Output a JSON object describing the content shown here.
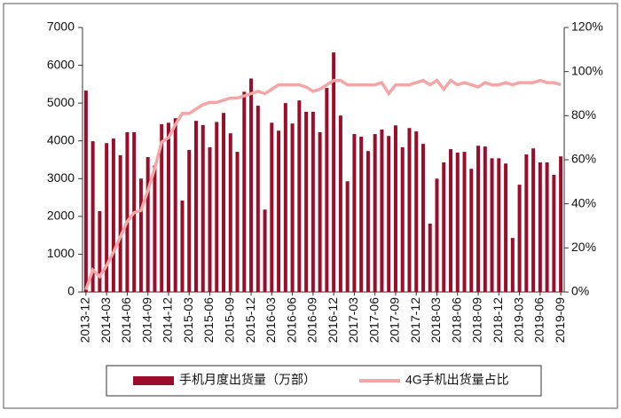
{
  "chart_data": {
    "type": "bar",
    "categories": [
      "2013-12",
      null,
      null,
      "2014-03",
      null,
      null,
      "2014-06",
      null,
      null,
      "2014-09",
      null,
      null,
      "2014-12",
      null,
      null,
      "2015-03",
      null,
      null,
      "2015-06",
      null,
      null,
      "2015-09",
      null,
      null,
      "2015-12",
      null,
      null,
      "2016-03",
      null,
      null,
      "2016-06",
      null,
      null,
      "2016-09",
      null,
      null,
      "2016-12",
      null,
      null,
      "2017-03",
      null,
      null,
      "2017-06",
      null,
      null,
      "2017-09",
      null,
      null,
      "2017-12",
      null,
      null,
      "2018-03",
      null,
      null,
      "2018-06",
      null,
      null,
      "2018-09",
      null,
      null,
      "2018-12",
      null,
      null,
      "2019-03",
      null,
      null,
      "2019-06",
      null,
      null,
      "2019-09"
    ],
    "series": [
      {
        "name": "手机月度出货量（万部）",
        "color": "#9b0e2b",
        "type": "bar",
        "values": [
          5330,
          3990,
          2140,
          3940,
          4060,
          3620,
          4230,
          4230,
          3000,
          3570,
          3350,
          4440,
          4480,
          4600,
          2420,
          3760,
          4530,
          4420,
          3830,
          4500,
          4740,
          4200,
          3710,
          5300,
          5650,
          4930,
          2180,
          4480,
          4270,
          5000,
          4460,
          5070,
          4770,
          4770,
          4230,
          5400,
          6340,
          4670,
          2930,
          4180,
          4110,
          3730,
          4180,
          4300,
          4130,
          4410,
          3830,
          4340,
          4250,
          3920,
          1810,
          3000,
          3430,
          3780,
          3690,
          3710,
          3260,
          3870,
          3850,
          3540,
          3540,
          3400,
          1430,
          2840,
          3640,
          3800,
          3430,
          3430,
          3100,
          3590
        ]
      },
      {
        "name": "4G手机出货量占比",
        "color": "#f4a6a6",
        "type": "line",
        "axis": "y2",
        "values": [
          1,
          10,
          7,
          12,
          18,
          25,
          32,
          36,
          37,
          46,
          56,
          68,
          70,
          76,
          81,
          81,
          83,
          85,
          86,
          86,
          87,
          88,
          88,
          89,
          90,
          91,
          90,
          92,
          94,
          94,
          94,
          94,
          93,
          91,
          92,
          94,
          96,
          96,
          94,
          94,
          94,
          94,
          94,
          95,
          90,
          94,
          94,
          94,
          95,
          96,
          94,
          96,
          92,
          96,
          94,
          95,
          94,
          93,
          95,
          94,
          94,
          95,
          94,
          95,
          95,
          95,
          96,
          95,
          95,
          94
        ]
      }
    ],
    "ylim": [
      0,
      7000
    ],
    "yticks": [
      0,
      1000,
      2000,
      3000,
      4000,
      5000,
      6000,
      7000
    ],
    "y2lim": [
      0,
      120
    ],
    "y2ticks": [
      {
        "value": 0,
        "label": "0%"
      },
      {
        "value": 20,
        "label": "20%"
      },
      {
        "value": 40,
        "label": "40%"
      },
      {
        "value": 60,
        "label": "60%"
      },
      {
        "value": 80,
        "label": "80%"
      },
      {
        "value": 100,
        "label": "100%"
      },
      {
        "value": 120,
        "label": "120%"
      }
    ]
  }
}
